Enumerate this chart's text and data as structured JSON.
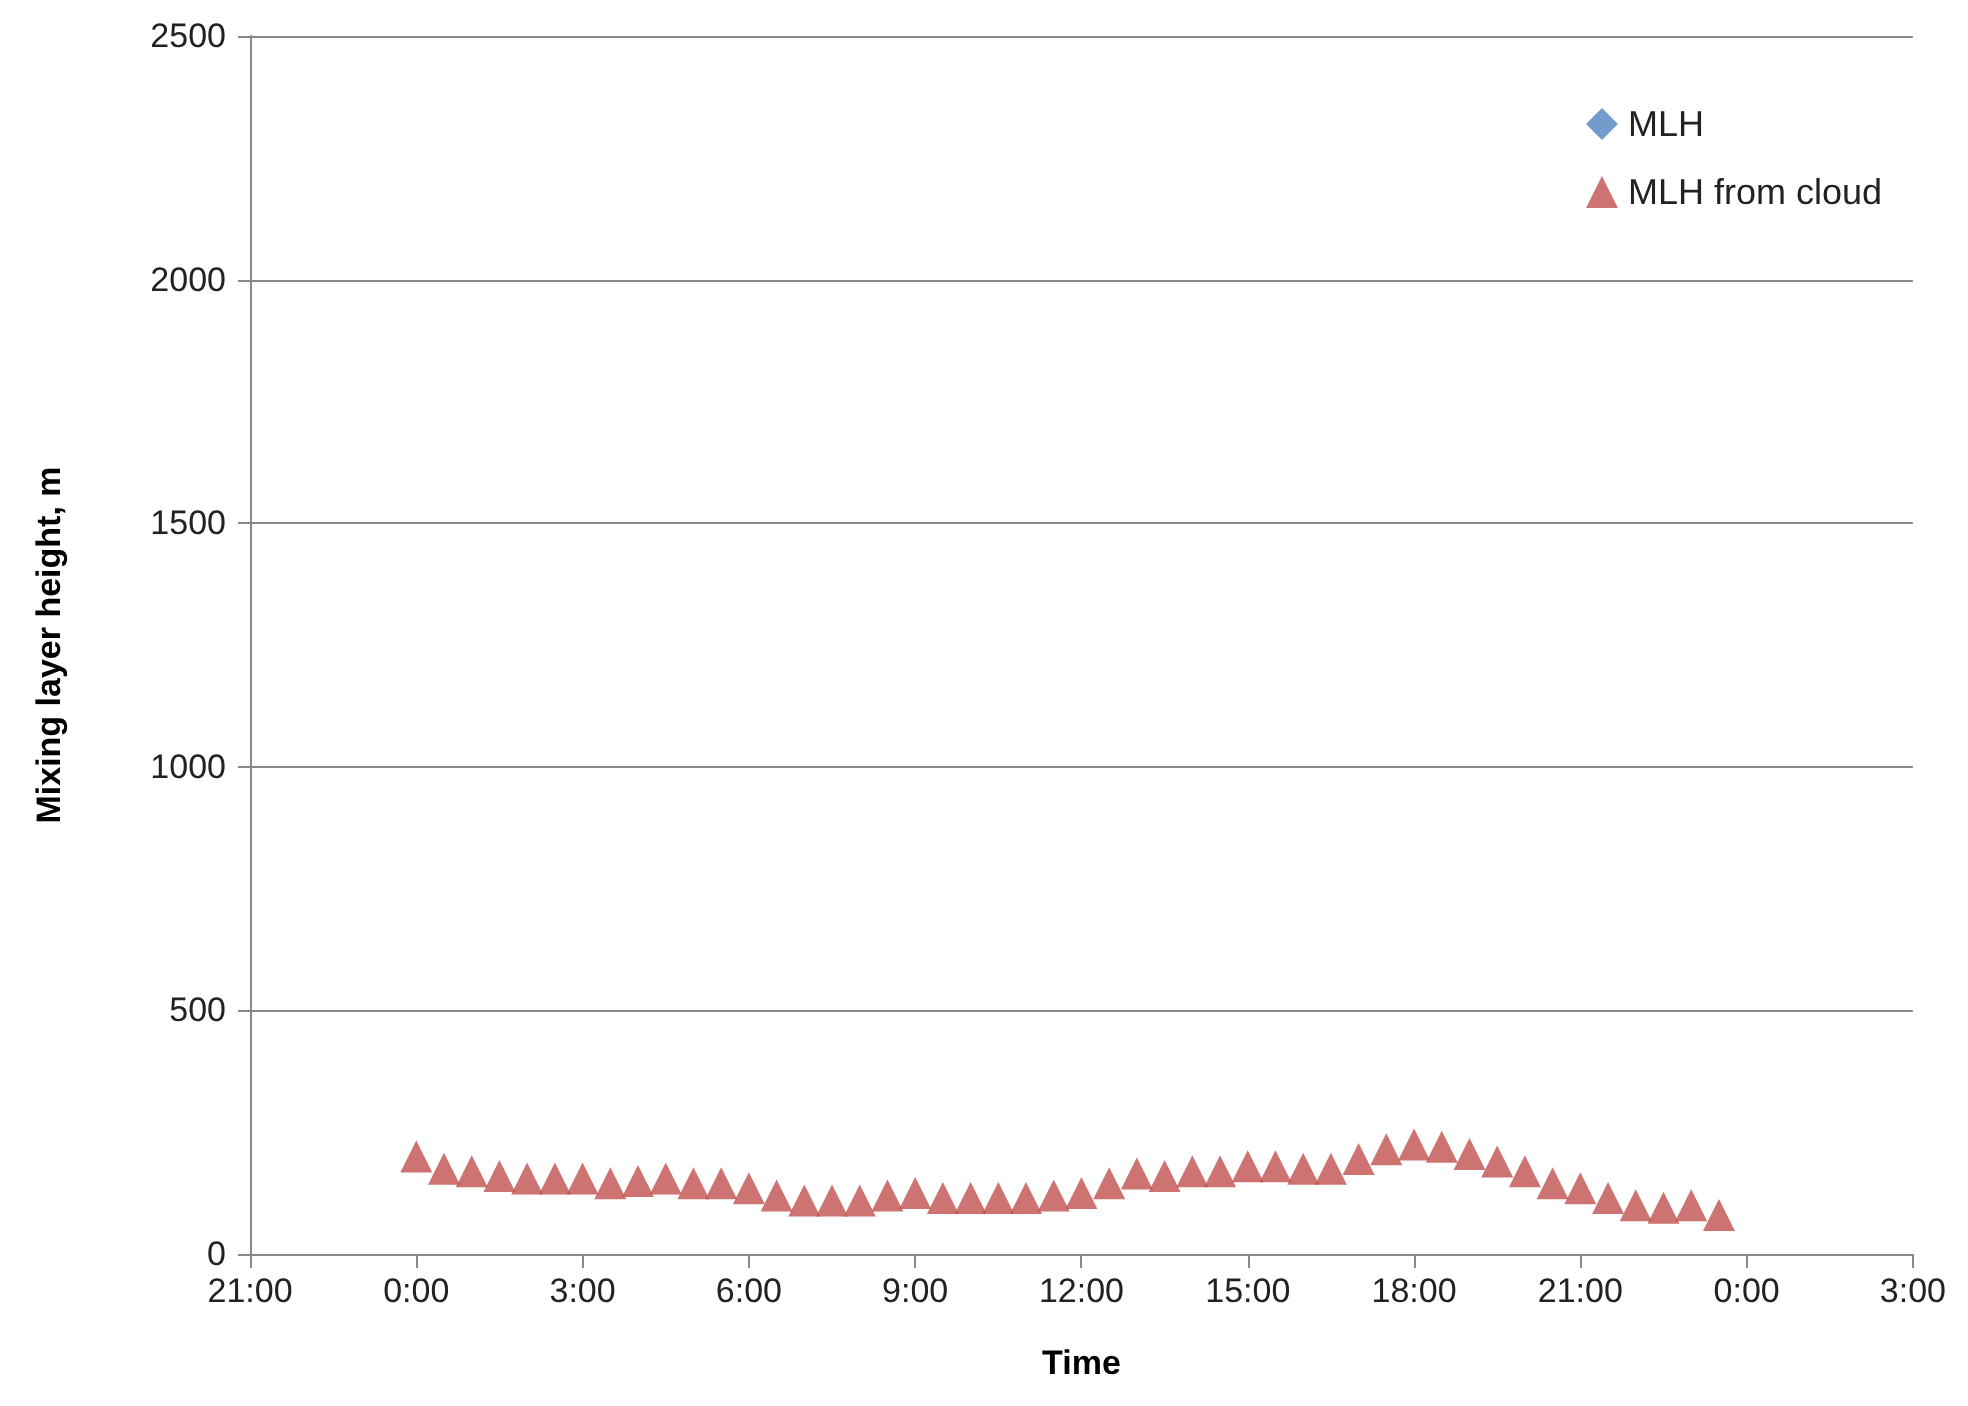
{
  "chart_data": {
    "type": "scatter",
    "xlabel": "Time",
    "ylabel": "Mixing layer height, m",
    "x": [
      "--01-02T00:00",
      "--01-02T00:30",
      "--01-02T01:00",
      "--01-02T01:30",
      "--01-02T02:00",
      "--01-02T02:30",
      "--01-02T03:00",
      "--01-02T03:30",
      "--01-02T04:00",
      "--01-02T04:30",
      "--01-02T05:00",
      "--01-02T05:30",
      "--01-02T06:00",
      "--01-02T06:30",
      "--01-02T07:00",
      "--01-02T07:30",
      "--01-02T08:00",
      "--01-02T08:30",
      "--01-02T09:00",
      "--01-02T09:30",
      "--01-02T10:00",
      "--01-02T10:30",
      "--01-02T11:00",
      "--01-02T11:30",
      "--01-02T12:00",
      "--01-02T12:30",
      "--01-02T13:00",
      "--01-02T13:30",
      "--01-02T14:00",
      "--01-02T14:30",
      "--01-02T15:00",
      "--01-02T15:30",
      "--01-02T16:00",
      "--01-02T16:30",
      "--01-02T17:00",
      "--01-02T17:30",
      "--01-02T18:00",
      "--01-02T18:30",
      "--01-02T19:00",
      "--01-02T19:30",
      "--01-02T20:00",
      "--01-02T20:30",
      "--01-02T21:00",
      "--01-02T21:30",
      "--01-02T22:00",
      "--01-02T22:30",
      "--01-02T23:00",
      "--01-02T23:30"
    ],
    "series": [
      {
        "name": "MLH",
        "color": "#4f81bd",
        "marker": "diamond",
        "values": [
          null,
          null,
          null,
          null,
          null,
          null,
          null,
          null,
          null,
          null,
          null,
          null,
          null,
          null,
          null,
          null,
          null,
          null,
          null,
          null,
          null,
          null,
          null,
          null,
          null,
          null,
          null,
          null,
          null,
          null,
          null,
          null,
          null,
          null,
          null,
          null,
          null,
          null,
          null,
          null,
          null,
          null,
          null,
          null,
          null,
          null,
          null,
          null
        ]
      },
      {
        "name": "MLH from cloud",
        "color": "#c0504d",
        "marker": "triangle",
        "values": [
          200,
          175,
          170,
          160,
          155,
          155,
          155,
          145,
          150,
          155,
          145,
          145,
          135,
          120,
          110,
          110,
          110,
          120,
          125,
          115,
          115,
          115,
          115,
          120,
          125,
          145,
          165,
          160,
          170,
          170,
          180,
          180,
          175,
          175,
          195,
          215,
          225,
          220,
          205,
          190,
          170,
          145,
          135,
          115,
          100,
          95,
          100,
          80
        ]
      }
    ],
    "xlim": [
      "--01-01T21:00",
      "--01-03T03:00"
    ],
    "xticks": [
      {
        "value": "--01-01T21:00",
        "label": "21:00"
      },
      {
        "value": "--01-02T00:00",
        "label": "0:00"
      },
      {
        "value": "--01-02T03:00",
        "label": "3:00"
      },
      {
        "value": "--01-02T06:00",
        "label": "6:00"
      },
      {
        "value": "--01-02T09:00",
        "label": "9:00"
      },
      {
        "value": "--01-02T12:00",
        "label": "12:00"
      },
      {
        "value": "--01-02T15:00",
        "label": "15:00"
      },
      {
        "value": "--01-02T18:00",
        "label": "18:00"
      },
      {
        "value": "--01-02T21:00",
        "label": "21:00"
      },
      {
        "value": "--01-03T00:00",
        "label": "0:00"
      },
      {
        "value": "--01-03T03:00",
        "label": "3:00"
      }
    ],
    "ylim": [
      0,
      2500
    ],
    "yticks": [
      0,
      500,
      1000,
      1500,
      2000,
      2500
    ],
    "grid": "y",
    "legend": "top right"
  }
}
